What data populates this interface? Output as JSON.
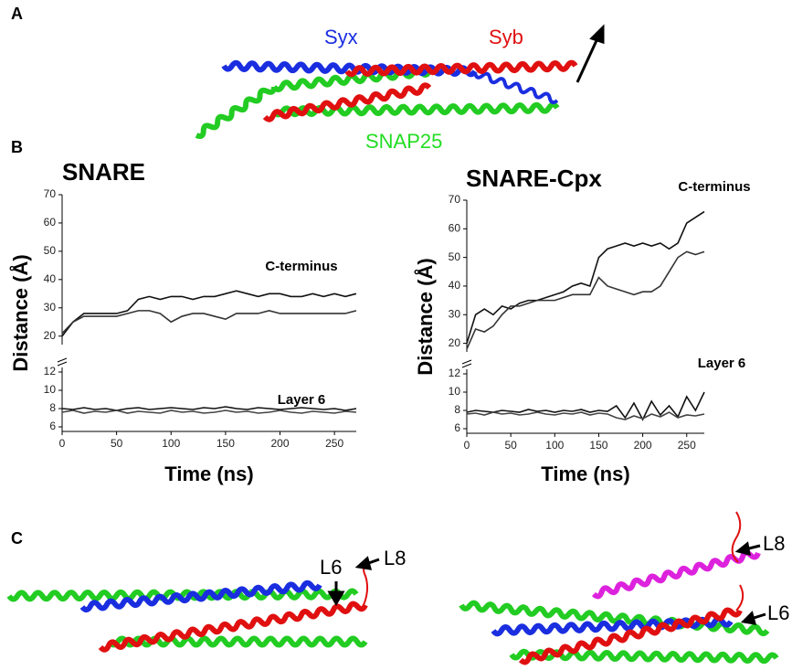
{
  "panel_labels": [
    "A",
    "B",
    "C"
  ],
  "molecule_labels": {
    "syx": "Syx",
    "syb": "Syb",
    "snap25": "SNAP25",
    "l6_left": "L6",
    "l8_left": "L8",
    "l8_right": "L8",
    "l6_right": "L6"
  },
  "chart_data": [
    {
      "type": "line",
      "title": "SNARE",
      "xlabel": "Time (ns)",
      "ylabel": "Distance (Å)",
      "annotations": [
        "C-terminus",
        "Layer 6"
      ],
      "x": [
        0,
        10,
        20,
        30,
        40,
        50,
        60,
        70,
        80,
        90,
        100,
        110,
        120,
        130,
        140,
        150,
        160,
        170,
        180,
        190,
        200,
        210,
        220,
        230,
        240,
        250,
        260,
        270
      ],
      "xlim": [
        0,
        270
      ],
      "xticks": [
        0,
        50,
        100,
        150,
        200,
        250
      ],
      "ylim": [
        17,
        70
      ],
      "yticks": [
        20,
        30,
        40,
        50,
        60,
        70
      ],
      "y2lim": [
        5.5,
        12.5
      ],
      "y2ticks": [
        6,
        8,
        10,
        12
      ],
      "series": [
        {
          "color": "#111111",
          "values": [
            20,
            25,
            28,
            28,
            28,
            28,
            29,
            33,
            34,
            33,
            34,
            34,
            33,
            34,
            34,
            35,
            36,
            35,
            34,
            35,
            35,
            34,
            34,
            35,
            34,
            35,
            34,
            35
          ]
        },
        {
          "color": "#333333",
          "values": [
            21,
            25,
            27,
            27,
            27,
            27,
            28,
            29,
            29,
            28,
            25,
            27,
            28,
            28,
            27,
            26,
            28,
            28,
            28,
            29,
            28,
            28,
            28,
            28,
            28,
            28,
            28,
            29
          ]
        },
        {
          "color": "#111111",
          "axis": "y2",
          "values": [
            8,
            7.9,
            8.1,
            7.9,
            8,
            7.8,
            8,
            8.1,
            7.9,
            8,
            8.1,
            8,
            7.9,
            8.1,
            8,
            8.2,
            8,
            7.9,
            8.1,
            8,
            7.9,
            8,
            8.1,
            8,
            7.9,
            8,
            7.8,
            8
          ]
        },
        {
          "color": "#444444",
          "axis": "y2",
          "values": [
            7.6,
            7.8,
            7.5,
            7.7,
            7.6,
            7.8,
            7.5,
            7.7,
            7.6,
            7.5,
            7.8,
            7.6,
            7.7,
            7.5,
            7.6,
            7.8,
            7.6,
            7.7,
            7.5,
            7.6,
            7.8,
            7.6,
            7.5,
            7.7,
            7.6,
            7.5,
            7.7,
            7.6
          ]
        }
      ]
    },
    {
      "type": "line",
      "title": "SNARE-Cpx",
      "xlabel": "Time (ns)",
      "ylabel": "Distance (Å)",
      "annotations": [
        "C-terminus",
        "Layer 6"
      ],
      "x": [
        0,
        10,
        20,
        30,
        40,
        50,
        60,
        70,
        80,
        90,
        100,
        110,
        120,
        130,
        140,
        150,
        160,
        170,
        180,
        190,
        200,
        210,
        220,
        230,
        240,
        250,
        260,
        270
      ],
      "xlim": [
        0,
        270
      ],
      "xticks": [
        0,
        50,
        100,
        150,
        200,
        250
      ],
      "ylim": [
        17,
        70
      ],
      "yticks": [
        20,
        30,
        40,
        50,
        60,
        70
      ],
      "y2lim": [
        5.5,
        12.5
      ],
      "y2ticks": [
        6,
        8,
        10,
        12
      ],
      "series": [
        {
          "color": "#111111",
          "values": [
            20,
            30,
            32,
            30,
            33,
            32,
            34,
            35,
            35,
            36,
            37,
            38,
            40,
            41,
            40,
            50,
            53,
            54,
            55,
            54,
            55,
            54,
            55,
            53,
            55,
            62,
            64,
            66
          ]
        },
        {
          "color": "#333333",
          "values": [
            18,
            25,
            24,
            26,
            30,
            33,
            33,
            34,
            35,
            35,
            35,
            36,
            37,
            37,
            37,
            43,
            40,
            39,
            38,
            37,
            38,
            38,
            40,
            45,
            50,
            52,
            51,
            52
          ]
        },
        {
          "color": "#111111",
          "axis": "y2",
          "values": [
            7.8,
            8,
            7.9,
            7.8,
            8,
            7.9,
            7.8,
            8.1,
            7.9,
            8,
            7.8,
            8,
            7.9,
            8.1,
            7.8,
            8,
            7.9,
            8.5,
            7.2,
            8.8,
            7,
            9,
            7.5,
            8.5,
            7.3,
            9.5,
            8,
            10
          ]
        },
        {
          "color": "#444444",
          "axis": "y2",
          "values": [
            7.6,
            7.7,
            7.5,
            7.8,
            7.6,
            7.7,
            7.5,
            7.6,
            7.8,
            7.6,
            7.5,
            7.7,
            7.6,
            7.8,
            7.5,
            7.7,
            7.6,
            7.2,
            7,
            7.4,
            7.1,
            7.6,
            7.3,
            7.8,
            7.2,
            7.5,
            7.4,
            7.6
          ]
        }
      ]
    }
  ]
}
